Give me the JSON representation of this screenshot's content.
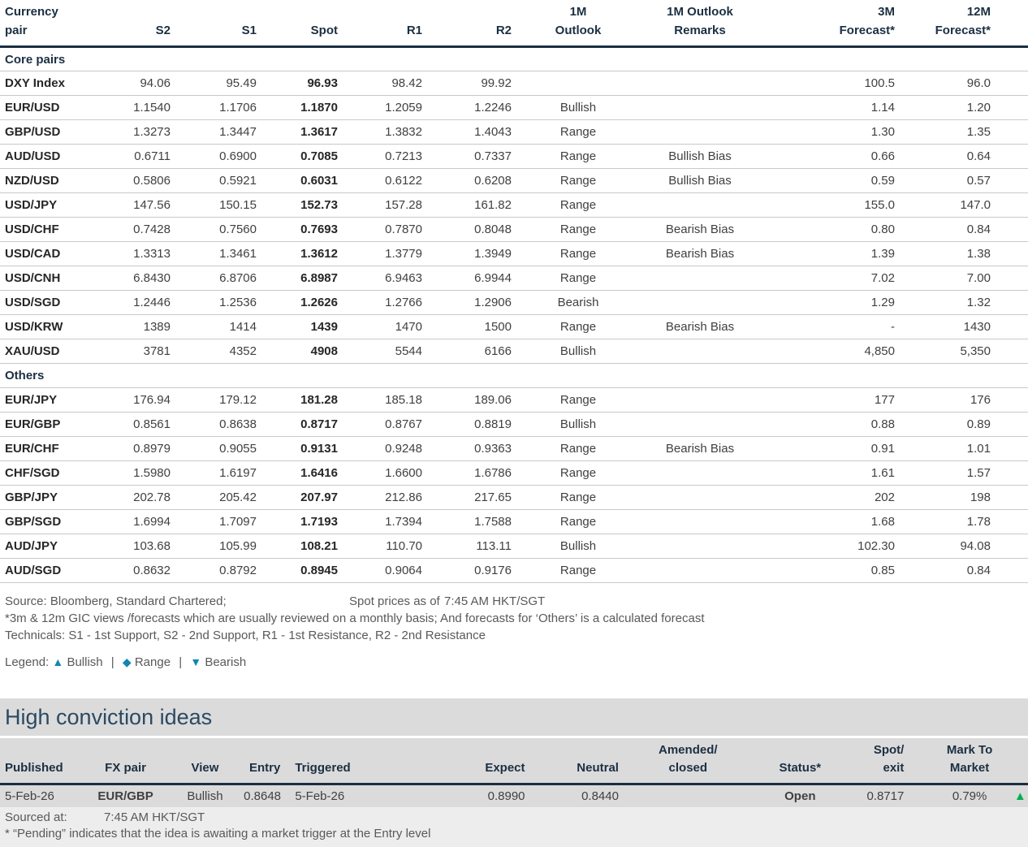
{
  "colors": {
    "header_navy": "#1B2F42",
    "title_navy": "#2B4A63",
    "bullish_green": "#00B050",
    "range_orange": "#F0A30A",
    "bearish_red": "#FF0000",
    "legend_blue": "#1287B1",
    "note_gray": "#595959",
    "band_gray": "#DBDBDB"
  },
  "table": {
    "headers": {
      "pair": "Currency\npair",
      "s2": "S2",
      "s1": "S1",
      "spot": "Spot",
      "r1": "R1",
      "r2": "R2",
      "outlook_1m": "1M\nOutlook",
      "remarks_1m": "1M Outlook\nRemarks",
      "forecast_3m": "3M\nForecast*",
      "forecast_12m": "12M\nForecast*"
    },
    "sections": [
      {
        "label": "Core pairs",
        "rows": [
          {
            "pair": "DXY Index",
            "s2": "94.06",
            "s1": "95.49",
            "spot": "96.93",
            "r1": "98.42",
            "r2": "99.92",
            "outlook": "",
            "remarks": "",
            "f3m": "100.5",
            "f12m": "96.0"
          },
          {
            "pair": "EUR/USD",
            "s2": "1.1540",
            "s1": "1.1706",
            "spot": "1.1870",
            "r1": "1.2059",
            "r2": "1.2246",
            "outlook": "Bullish",
            "remarks": "",
            "f3m": "1.14",
            "f12m": "1.20"
          },
          {
            "pair": "GBP/USD",
            "s2": "1.3273",
            "s1": "1.3447",
            "spot": "1.3617",
            "r1": "1.3832",
            "r2": "1.4043",
            "outlook": "Range",
            "remarks": "",
            "f3m": "1.30",
            "f12m": "1.35"
          },
          {
            "pair": "AUD/USD",
            "s2": "0.6711",
            "s1": "0.6900",
            "spot": "0.7085",
            "r1": "0.7213",
            "r2": "0.7337",
            "outlook": "Range",
            "remarks": "Bullish Bias",
            "f3m": "0.66",
            "f12m": "0.64"
          },
          {
            "pair": "NZD/USD",
            "s2": "0.5806",
            "s1": "0.5921",
            "spot": "0.6031",
            "r1": "0.6122",
            "r2": "0.6208",
            "outlook": "Range",
            "remarks": "Bullish Bias",
            "f3m": "0.59",
            "f12m": "0.57"
          },
          {
            "pair": "USD/JPY",
            "s2": "147.56",
            "s1": "150.15",
            "spot": "152.73",
            "r1": "157.28",
            "r2": "161.82",
            "outlook": "Range",
            "remarks": "",
            "f3m": "155.0",
            "f12m": "147.0"
          },
          {
            "pair": "USD/CHF",
            "s2": "0.7428",
            "s1": "0.7560",
            "spot": "0.7693",
            "r1": "0.7870",
            "r2": "0.8048",
            "outlook": "Range",
            "remarks": "Bearish Bias",
            "f3m": "0.80",
            "f12m": "0.84"
          },
          {
            "pair": "USD/CAD",
            "s2": "1.3313",
            "s1": "1.3461",
            "spot": "1.3612",
            "r1": "1.3779",
            "r2": "1.3949",
            "outlook": "Range",
            "remarks": "Bearish Bias",
            "f3m": "1.39",
            "f12m": "1.38"
          },
          {
            "pair": "USD/CNH",
            "s2": "6.8430",
            "s1": "6.8706",
            "spot": "6.8987",
            "r1": "6.9463",
            "r2": "6.9944",
            "outlook": "Range",
            "remarks": "",
            "f3m": "7.02",
            "f12m": "7.00"
          },
          {
            "pair": "USD/SGD",
            "s2": "1.2446",
            "s1": "1.2536",
            "spot": "1.2626",
            "r1": "1.2766",
            "r2": "1.2906",
            "outlook": "Bearish",
            "remarks": "",
            "f3m": "1.29",
            "f12m": "1.32"
          },
          {
            "pair": "USD/KRW",
            "s2": "1389",
            "s1": "1414",
            "spot": "1439",
            "r1": "1470",
            "r2": "1500",
            "outlook": "Range",
            "remarks": "Bearish Bias",
            "f3m": "-",
            "f12m": "1430"
          },
          {
            "pair": "XAU/USD",
            "s2": "3781",
            "s1": "4352",
            "spot": "4908",
            "r1": "5544",
            "r2": "6166",
            "outlook": "Bullish",
            "remarks": "",
            "f3m": "4,850",
            "f12m": "5,350"
          }
        ]
      },
      {
        "label": "Others",
        "rows": [
          {
            "pair": "EUR/JPY",
            "s2": "176.94",
            "s1": "179.12",
            "spot": "181.28",
            "r1": "185.18",
            "r2": "189.06",
            "outlook": "Range",
            "remarks": "",
            "f3m": "177",
            "f12m": "176"
          },
          {
            "pair": "EUR/GBP",
            "s2": "0.8561",
            "s1": "0.8638",
            "spot": "0.8717",
            "r1": "0.8767",
            "r2": "0.8819",
            "outlook": "Bullish",
            "remarks": "",
            "f3m": "0.88",
            "f12m": "0.89"
          },
          {
            "pair": "EUR/CHF",
            "s2": "0.8979",
            "s1": "0.9055",
            "spot": "0.9131",
            "r1": "0.9248",
            "r2": "0.9363",
            "outlook": "Range",
            "remarks": "Bearish Bias",
            "f3m": "0.91",
            "f12m": "1.01"
          },
          {
            "pair": "CHF/SGD",
            "s2": "1.5980",
            "s1": "1.6197",
            "spot": "1.6416",
            "r1": "1.6600",
            "r2": "1.6786",
            "outlook": "Range",
            "remarks": "",
            "f3m": "1.61",
            "f12m": "1.57"
          },
          {
            "pair": "GBP/JPY",
            "s2": "202.78",
            "s1": "205.42",
            "spot": "207.97",
            "r1": "212.86",
            "r2": "217.65",
            "outlook": "Range",
            "remarks": "",
            "f3m": "202",
            "f12m": "198"
          },
          {
            "pair": "GBP/SGD",
            "s2": "1.6994",
            "s1": "1.7097",
            "spot": "1.7193",
            "r1": "1.7394",
            "r2": "1.7588",
            "outlook": "Range",
            "remarks": "",
            "f3m": "1.68",
            "f12m": "1.78"
          },
          {
            "pair": "AUD/JPY",
            "s2": "103.68",
            "s1": "105.99",
            "spot": "108.21",
            "r1": "110.70",
            "r2": "113.11",
            "outlook": "Bullish",
            "remarks": "",
            "f3m": "102.30",
            "f12m": "94.08"
          },
          {
            "pair": "AUD/SGD",
            "s2": "0.8632",
            "s1": "0.8792",
            "spot": "0.8945",
            "r1": "0.9064",
            "r2": "0.9176",
            "outlook": "Range",
            "remarks": "",
            "f3m": "0.85",
            "f12m": "0.84"
          }
        ]
      }
    ]
  },
  "notes": {
    "source": "Source: Bloomberg, Standard Chartered;",
    "spot_asof_label": "Spot prices as of",
    "spot_asof_time": "7:45 AM HKT/SGT",
    "gic": "*3m & 12m GIC views /forecasts which are usually reviewed on a monthly basis; And forecasts for ‘Others’ is a calculated forecast",
    "technicals": "Technicals: S1 - 1st Support, S2 - 2nd Support, R1 - 1st Resistance, R2 - 2nd Resistance"
  },
  "legend": {
    "prefix": "Legend:",
    "items": [
      {
        "symbol": "▲",
        "label": "Bullish"
      },
      {
        "symbol": "◆",
        "label": "Range"
      },
      {
        "symbol": "▼",
        "label": "Bearish"
      }
    ],
    "separator": "|"
  },
  "ideas": {
    "title": "High conviction ideas",
    "headers": {
      "published": "Published",
      "fx_pair": "FX pair",
      "view": "View",
      "entry": "Entry",
      "triggered": "Triggered",
      "expect": "Expect",
      "neutral": "Neutral",
      "amended": "Amended/\nclosed",
      "status": "Status*",
      "spot_exit": "Spot/\nexit",
      "mtm": "Mark To\nMarket"
    },
    "row": {
      "published": "5-Feb-26",
      "fx_pair": "EUR/GBP",
      "view": "Bullish",
      "entry": "0.8648",
      "triggered": "5-Feb-26",
      "expect": "0.8990",
      "neutral": "0.8440",
      "amended": "",
      "status": "Open",
      "spot_exit": "0.8717",
      "mtm": "0.79%",
      "mtm_icon": "▲"
    },
    "sourced_label": "Sourced at:",
    "sourced_time": "7:45 AM HKT/SGT",
    "pending_note": "* “Pending” indicates that the idea is awaiting a market trigger at the Entry level"
  }
}
